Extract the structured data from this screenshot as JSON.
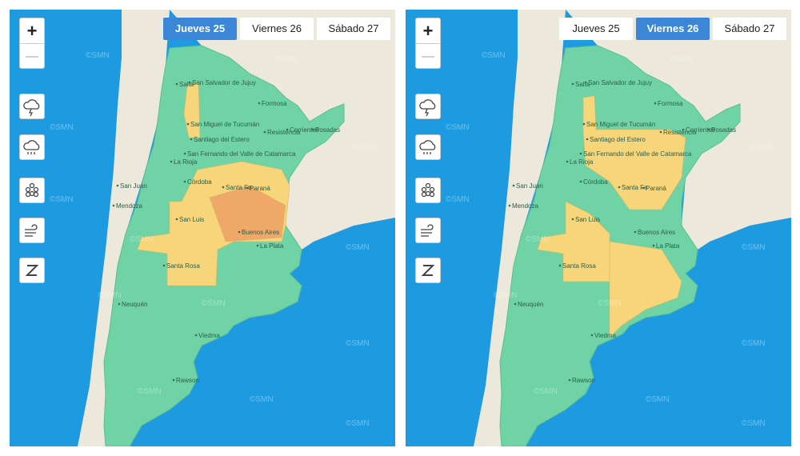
{
  "panels": [
    {
      "tabs": [
        "Jueves 25",
        "Viernes 26",
        "Sábado 27"
      ],
      "active_tab": 0
    },
    {
      "tabs": [
        "Jueves 25",
        "Viernes 26",
        "Sábado 27"
      ],
      "active_tab": 1
    }
  ],
  "zoom": {
    "in": "+",
    "out": "—"
  },
  "cities": [
    "Salta",
    "San Salvador de Jujuy",
    "Formosa",
    "San Miguel de Tucumán",
    "Resistencia",
    "Corrientes",
    "Posadas",
    "Santiago del Estero",
    "San Fernando del Valle de Catamarca",
    "La Rioja",
    "San Juan",
    "Córdoba",
    "Santa Fe",
    "Paraná",
    "Mendoza",
    "San Luis",
    "Buenos Aires",
    "La Plata",
    "Santa Rosa",
    "Neuquén",
    "Viedma",
    "Rawson"
  ],
  "watermark": "©SMN"
}
